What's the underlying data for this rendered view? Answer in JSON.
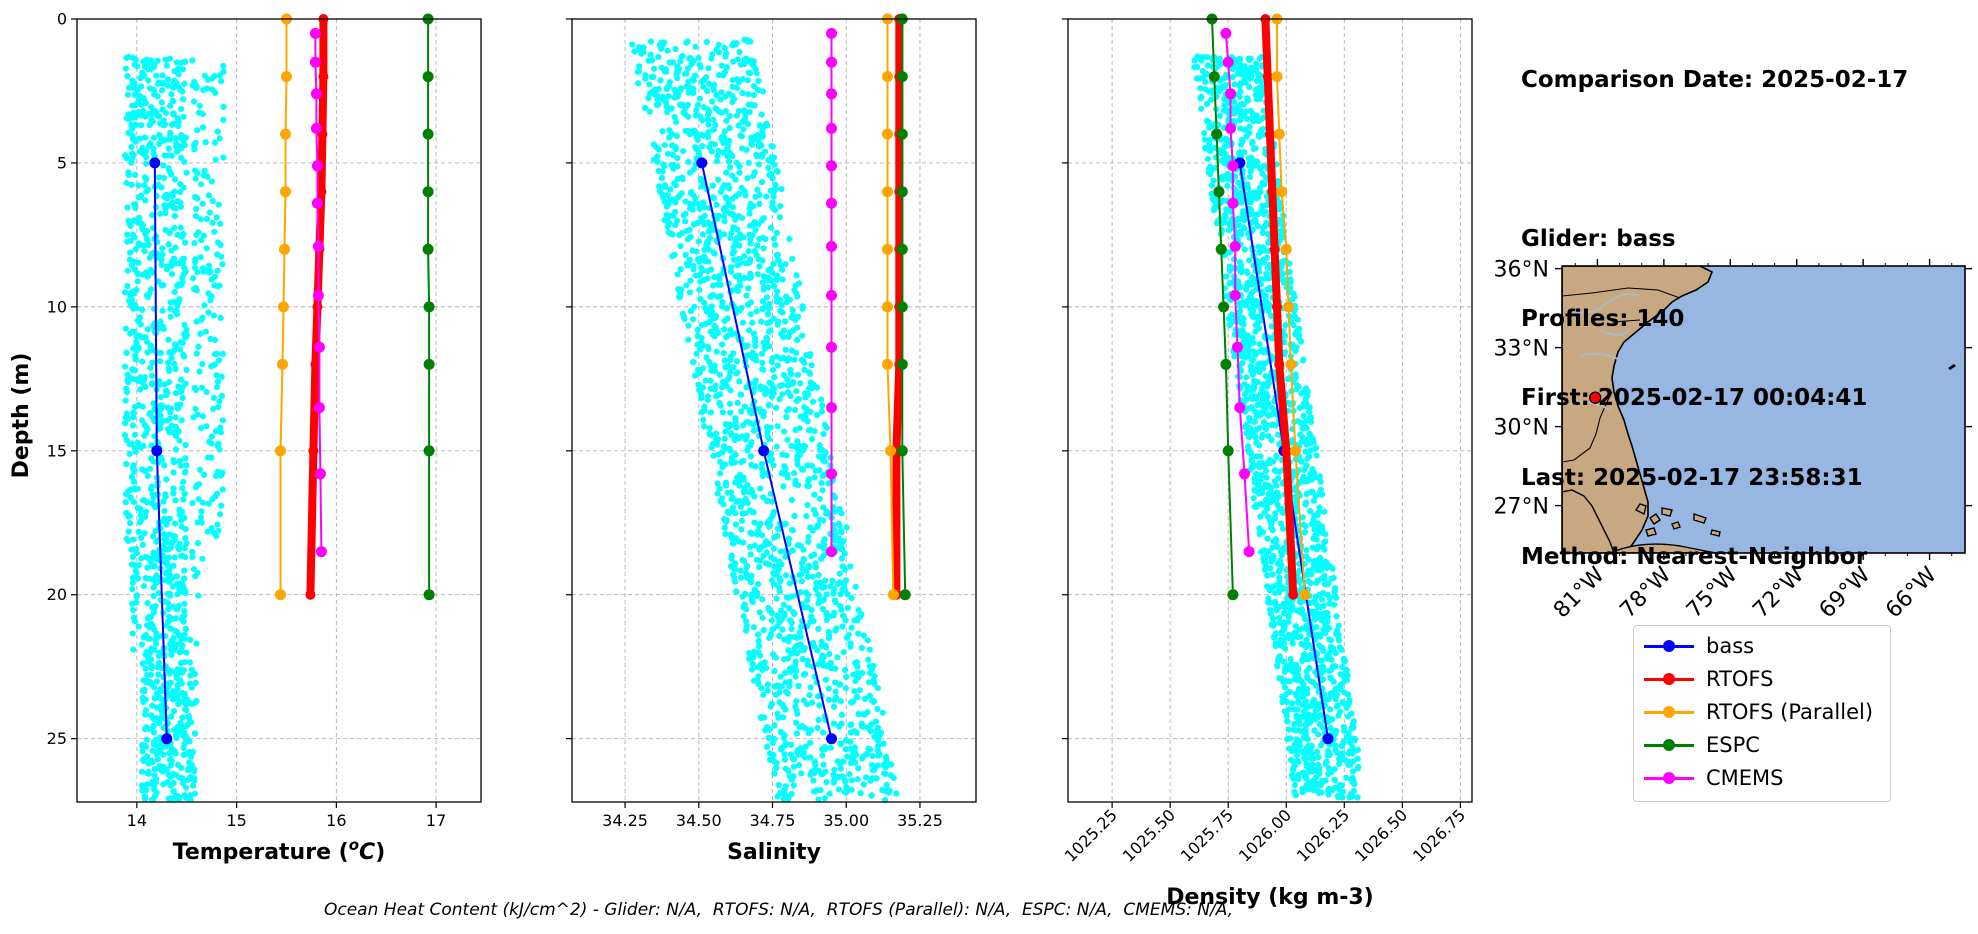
{
  "info": {
    "comparison_date": "Comparison Date: 2025-02-17",
    "glider": "Glider: bass",
    "profiles": "Profiles: 140",
    "first": "First: 2025-02-17 00:04:41",
    "last": "Last: 2025-02-17 23:58:31",
    "method": "Method: Nearest-Neighbor"
  },
  "footer": "Ocean Heat Content (kJ/cm^2) - Glider: N/A,  RTOFS: N/A,  RTOFS (Parallel): N/A,  ESPC: N/A,  CMEMS: N/A,",
  "colors": {
    "bass": "#0000ff",
    "rtofs": "#ff0000",
    "rtofs_parallel": "#ffa500",
    "espc": "#008000",
    "cmems": "#ff00ff",
    "scatter": "#00ffff",
    "land": "#c8a880",
    "ocean": "#97b6e1",
    "grid": "#b0b0b0"
  },
  "legend": [
    {
      "label": "bass",
      "color": "#0000ff"
    },
    {
      "label": "RTOFS",
      "color": "#ff0000"
    },
    {
      "label": "RTOFS (Parallel)",
      "color": "#ffa500"
    },
    {
      "label": "ESPC",
      "color": "#008000"
    },
    {
      "label": "CMEMS",
      "color": "#ff00ff"
    }
  ],
  "chart_data": [
    {
      "type": "line",
      "xlabel": "Temperature (°C)",
      "ylabel": "Depth (m)",
      "xlim": [
        13.4,
        17.45
      ],
      "ylim": [
        27.2,
        0
      ],
      "xticks": [
        14,
        15,
        16,
        17
      ],
      "yticks": [
        0,
        5,
        10,
        15,
        20,
        25
      ],
      "grid": true,
      "scatter": {
        "name": "glider raw",
        "color": "#00ffff",
        "core_x": [
          13.9,
          14.55
        ],
        "halo_x": [
          14.55,
          14.85
        ],
        "depth_range": [
          1.3,
          27.2
        ],
        "count": 1300
      },
      "series": [
        {
          "name": "bass",
          "depth": [
            5,
            15,
            25
          ],
          "values": [
            14.18,
            14.2,
            14.3
          ],
          "linewidth": 2
        },
        {
          "name": "RTOFS",
          "depth": [
            0,
            2,
            4,
            6,
            8,
            10,
            12,
            15,
            20
          ],
          "values": [
            15.87,
            15.87,
            15.86,
            15.85,
            15.83,
            15.81,
            15.79,
            15.77,
            15.74
          ],
          "linewidth": 8,
          "markers": false
        },
        {
          "name": "RTOFS (Parallel)",
          "depth": [
            0,
            2,
            4,
            6,
            8,
            10,
            12,
            15,
            20
          ],
          "values": [
            15.5,
            15.5,
            15.49,
            15.49,
            15.48,
            15.47,
            15.46,
            15.44,
            15.44
          ],
          "linewidth": 2
        },
        {
          "name": "ESPC",
          "depth": [
            0,
            2,
            4,
            6,
            8,
            10,
            12,
            15,
            20
          ],
          "values": [
            16.92,
            16.92,
            16.92,
            16.92,
            16.92,
            16.93,
            16.93,
            16.93,
            16.93
          ],
          "linewidth": 2
        },
        {
          "name": "CMEMS",
          "depth": [
            0.5,
            1.5,
            2.6,
            3.8,
            5.1,
            6.4,
            7.9,
            9.6,
            11.4,
            13.5,
            15.8,
            18.5
          ],
          "values": [
            15.79,
            15.79,
            15.8,
            15.8,
            15.81,
            15.81,
            15.82,
            15.82,
            15.83,
            15.83,
            15.84,
            15.85
          ],
          "linewidth": 2
        }
      ]
    },
    {
      "type": "line",
      "xlabel": "Salinity",
      "ylabel": "",
      "xlim": [
        34.07,
        35.44
      ],
      "ylim": [
        27.2,
        0
      ],
      "xticks": [
        34.25,
        34.5,
        34.75,
        35.0,
        35.25
      ],
      "xticklabels": [
        "34.25",
        "34.50",
        "34.75",
        "35.00",
        "35.25"
      ],
      "yticks": [
        0,
        5,
        10,
        15,
        20,
        25
      ],
      "grid": true,
      "scatter": {
        "name": "glider raw",
        "color": "#00ffff",
        "profile": "diagonal",
        "depth_range": [
          0.7,
          27.2
        ],
        "count": 1900
      },
      "series": [
        {
          "name": "bass",
          "depth": [
            5,
            15,
            25
          ],
          "values": [
            34.51,
            34.72,
            34.95
          ],
          "linewidth": 2
        },
        {
          "name": "RTOFS",
          "depth": [
            0,
            2,
            4,
            6,
            8,
            10,
            12,
            15,
            20
          ],
          "values": [
            35.18,
            35.18,
            35.18,
            35.18,
            35.18,
            35.18,
            35.18,
            35.17,
            35.17
          ],
          "linewidth": 8,
          "markers": false
        },
        {
          "name": "RTOFS (Parallel)",
          "depth": [
            0,
            2,
            4,
            6,
            8,
            10,
            12,
            15,
            20
          ],
          "values": [
            35.14,
            35.14,
            35.14,
            35.14,
            35.14,
            35.14,
            35.14,
            35.15,
            35.16
          ],
          "linewidth": 2
        },
        {
          "name": "ESPC",
          "depth": [
            0,
            2,
            4,
            6,
            8,
            10,
            12,
            15,
            20
          ],
          "values": [
            35.19,
            35.19,
            35.19,
            35.19,
            35.19,
            35.19,
            35.19,
            35.19,
            35.2
          ],
          "linewidth": 2
        },
        {
          "name": "CMEMS",
          "depth": [
            0.5,
            1.5,
            2.6,
            3.8,
            5.1,
            6.4,
            7.9,
            9.6,
            11.4,
            13.5,
            15.8,
            18.5
          ],
          "values": [
            34.95,
            34.95,
            34.95,
            34.95,
            34.95,
            34.95,
            34.95,
            34.95,
            34.95,
            34.95,
            34.95,
            34.95
          ],
          "linewidth": 2
        }
      ]
    },
    {
      "type": "line",
      "xlabel": "Density (kg m-3)",
      "ylabel": "",
      "xlim": [
        1025.06,
        1026.8
      ],
      "ylim": [
        27.2,
        0
      ],
      "xticks": [
        1025.25,
        1025.5,
        1025.75,
        1026.0,
        1026.25,
        1026.5,
        1026.75
      ],
      "xticklabels": [
        "1025.25",
        "1025.50",
        "1025.75",
        "1026.00",
        "1026.25",
        "1026.50",
        "1026.75"
      ],
      "yticks": [
        0,
        5,
        10,
        15,
        20,
        25
      ],
      "grid": true,
      "scatter": {
        "name": "glider raw",
        "color": "#00ffff",
        "profile": "diagonal",
        "depth_range": [
          1.3,
          27.2
        ],
        "count": 1900
      },
      "series": [
        {
          "name": "bass",
          "depth": [
            5,
            15,
            25
          ],
          "values": [
            1025.8,
            1025.99,
            1026.18
          ],
          "linewidth": 2
        },
        {
          "name": "RTOFS",
          "depth": [
            0,
            2,
            4,
            6,
            8,
            10,
            12,
            15,
            20
          ],
          "values": [
            1025.91,
            1025.92,
            1025.93,
            1025.94,
            1025.95,
            1025.96,
            1025.97,
            1026.0,
            1026.03
          ],
          "linewidth": 8,
          "markers": false
        },
        {
          "name": "RTOFS (Parallel)",
          "depth": [
            0,
            2,
            4,
            6,
            8,
            10,
            12,
            15,
            20
          ],
          "values": [
            1025.96,
            1025.96,
            1025.97,
            1025.98,
            1026.0,
            1026.01,
            1026.02,
            1026.04,
            1026.08
          ],
          "linewidth": 2
        },
        {
          "name": "ESPC",
          "depth": [
            0,
            2,
            4,
            6,
            8,
            10,
            12,
            15,
            20
          ],
          "values": [
            1025.68,
            1025.69,
            1025.7,
            1025.71,
            1025.72,
            1025.73,
            1025.74,
            1025.75,
            1025.77
          ],
          "linewidth": 2
        },
        {
          "name": "CMEMS",
          "depth": [
            0.5,
            1.5,
            2.6,
            3.8,
            5.1,
            6.4,
            7.9,
            9.6,
            11.4,
            13.5,
            15.8,
            18.5
          ],
          "values": [
            1025.74,
            1025.75,
            1025.76,
            1025.76,
            1025.77,
            1025.77,
            1025.78,
            1025.78,
            1025.79,
            1025.8,
            1025.82,
            1025.84
          ],
          "linewidth": 2
        }
      ]
    },
    {
      "type": "map",
      "lat_range": [
        25.2,
        36.1
      ],
      "lon_range": [
        -82.6,
        -64.4
      ],
      "xticklabels": [
        "81°W",
        "78°W",
        "75°W",
        "72°W",
        "69°W",
        "66°W"
      ],
      "xticks": [
        -81,
        -78,
        -75,
        -72,
        -69,
        -66
      ],
      "yticklabels": [
        "36°N",
        "33°N",
        "30°N",
        "27°N"
      ],
      "yticks": [
        36,
        33,
        30,
        27
      ],
      "glider_position": {
        "lat": 31.1,
        "lon": -81.1
      }
    }
  ]
}
